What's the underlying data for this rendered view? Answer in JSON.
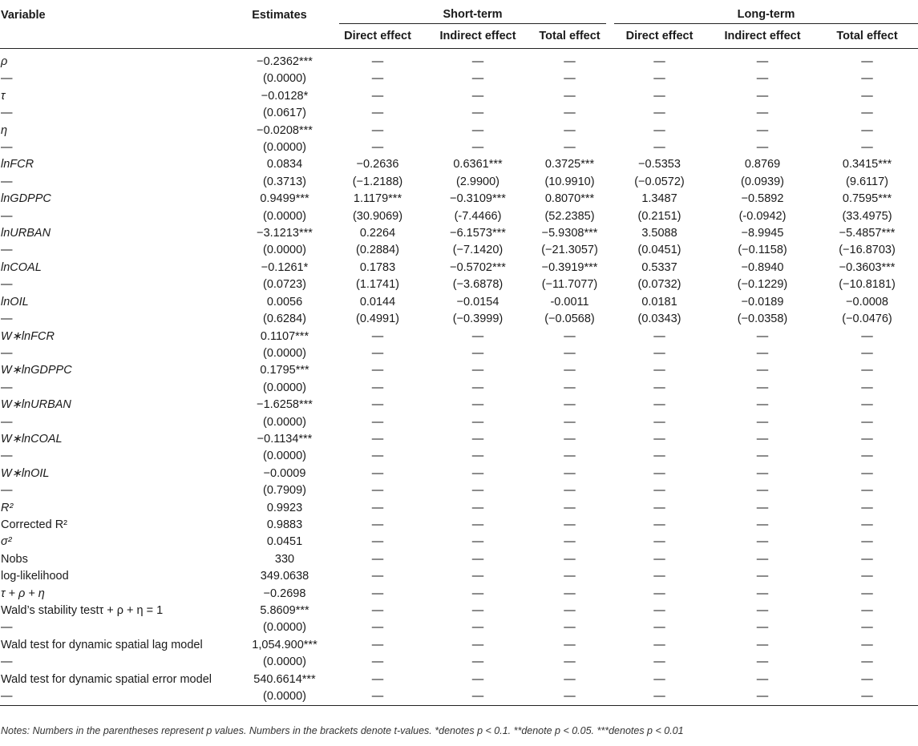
{
  "headers": {
    "variable": "Variable",
    "estimates": "Estimates",
    "short_term": "Short-term",
    "long_term": "Long-term",
    "direct": "Direct effect",
    "indirect": "Indirect effect",
    "total": "Total effect"
  },
  "rows": [
    {
      "name": "ρ",
      "italic": true,
      "cells": [
        "−0.2362***",
        "—",
        "—",
        "—",
        "—",
        "—",
        "—"
      ]
    },
    {
      "name": "—",
      "italic": false,
      "cells": [
        "(0.0000)",
        "—",
        "—",
        "—",
        "—",
        "—",
        "—"
      ]
    },
    {
      "name": "τ",
      "italic": true,
      "cells": [
        "−0.0128*",
        "—",
        "—",
        "—",
        "—",
        "—",
        "—"
      ]
    },
    {
      "name": "—",
      "italic": false,
      "cells": [
        "(0.0617)",
        "—",
        "—",
        "—",
        "—",
        "—",
        "—"
      ]
    },
    {
      "name": "η",
      "italic": true,
      "cells": [
        "−0.0208***",
        "—",
        "—",
        "—",
        "—",
        "—",
        "—"
      ]
    },
    {
      "name": "—",
      "italic": false,
      "cells": [
        "(0.0000)",
        "—",
        "—",
        "—",
        "—",
        "—",
        "—"
      ]
    },
    {
      "name": "lnFCR",
      "italic": true,
      "cells": [
        "0.0834",
        "−0.2636",
        "0.6361***",
        "0.3725***",
        "−0.5353",
        "0.8769",
        "0.3415***"
      ]
    },
    {
      "name": "—",
      "italic": false,
      "cells": [
        "(0.3713)",
        "(−1.2188)",
        "(2.9900)",
        "(10.9910)",
        "(−0.0572)",
        "(0.0939)",
        "(9.6117)"
      ]
    },
    {
      "name": "lnGDPPC",
      "italic": true,
      "cells": [
        "0.9499***",
        "1.1179***",
        "−0.3109***",
        "0.8070***",
        "1.3487",
        "−0.5892",
        "0.7595***"
      ]
    },
    {
      "name": "—",
      "italic": false,
      "cells": [
        "(0.0000)",
        "(30.9069)",
        "(-7.4466)",
        "(52.2385)",
        "(0.2151)",
        "(-0.0942)",
        "(33.4975)"
      ]
    },
    {
      "name": "lnURBAN",
      "italic": true,
      "cells": [
        "−3.1213***",
        "0.2264",
        "−6.1573***",
        "−5.9308***",
        "3.5088",
        "−8.9945",
        "−5.4857***"
      ]
    },
    {
      "name": "—",
      "italic": false,
      "cells": [
        "(0.0000)",
        "(0.2884)",
        "(−7.1420)",
        "(−21.3057)",
        "(0.0451)",
        "(−0.1158)",
        "(−16.8703)"
      ]
    },
    {
      "name": "lnCOAL",
      "italic": true,
      "cells": [
        "−0.1261*",
        "0.1783",
        "−0.5702***",
        "−0.3919***",
        "0.5337",
        "−0.8940",
        "−0.3603***"
      ]
    },
    {
      "name": "—",
      "italic": false,
      "cells": [
        "(0.0723)",
        "(1.1741)",
        "(−3.6878)",
        "(−11.7077)",
        "(0.0732)",
        "(−0.1229)",
        "(−10.8181)"
      ]
    },
    {
      "name": "lnOIL",
      "italic": true,
      "cells": [
        "0.0056",
        "0.0144",
        "−0.0154",
        "-0.0011",
        "0.0181",
        "−0.0189",
        "−0.0008"
      ]
    },
    {
      "name": "—",
      "italic": false,
      "cells": [
        "(0.6284)",
        "(0.4991)",
        "(−0.3999)",
        "(−0.0568)",
        "(0.0343)",
        "(−0.0358)",
        "(−0.0476)"
      ]
    },
    {
      "name": "W∗lnFCR",
      "italic": true,
      "cells": [
        "0.1107***",
        "—",
        "—",
        "—",
        "—",
        "—",
        "—"
      ]
    },
    {
      "name": "—",
      "italic": false,
      "cells": [
        "(0.0000)",
        "—",
        "—",
        "—",
        "—",
        "—",
        "—"
      ]
    },
    {
      "name": "W∗lnGDPPC",
      "italic": true,
      "cells": [
        "0.1795***",
        "—",
        "—",
        "—",
        "—",
        "—",
        "—"
      ]
    },
    {
      "name": "—",
      "italic": false,
      "cells": [
        "(0.0000)",
        "—",
        "—",
        "—",
        "—",
        "—",
        "—"
      ]
    },
    {
      "name": "W∗lnURBAN",
      "italic": true,
      "cells": [
        "−1.6258***",
        "—",
        "—",
        "—",
        "—",
        "—",
        "—"
      ]
    },
    {
      "name": "—",
      "italic": false,
      "cells": [
        "(0.0000)",
        "—",
        "—",
        "—",
        "—",
        "—",
        "—"
      ]
    },
    {
      "name": "W∗lnCOAL",
      "italic": true,
      "cells": [
        "−0.1134***",
        "—",
        "—",
        "—",
        "—",
        "—",
        "—"
      ]
    },
    {
      "name": "—",
      "italic": false,
      "cells": [
        "(0.0000)",
        "—",
        "—",
        "—",
        "—",
        "—",
        "—"
      ]
    },
    {
      "name": "W∗lnOIL",
      "italic": true,
      "cells": [
        "−0.0009",
        "—",
        "—",
        "—",
        "—",
        "—",
        "—"
      ]
    },
    {
      "name": "—",
      "italic": false,
      "cells": [
        "(0.7909)",
        "—",
        "—",
        "—",
        "—",
        "—",
        "—"
      ]
    },
    {
      "name": "R²",
      "italic": true,
      "cells": [
        "0.9923",
        "—",
        "—",
        "—",
        "—",
        "—",
        "—"
      ]
    },
    {
      "name": "Corrected R²",
      "italic": false,
      "cells": [
        "0.9883",
        "—",
        "—",
        "—",
        "—",
        "—",
        "—"
      ]
    },
    {
      "name": "σ²",
      "italic": true,
      "cells": [
        "0.0451",
        "—",
        "—",
        "—",
        "—",
        "—",
        "—"
      ]
    },
    {
      "name": "Nobs",
      "italic": false,
      "cells": [
        "330",
        "—",
        "—",
        "—",
        "—",
        "—",
        "—"
      ]
    },
    {
      "name": "log-likelihood",
      "italic": false,
      "cells": [
        "349.0638",
        "—",
        "—",
        "—",
        "—",
        "—",
        "—"
      ]
    },
    {
      "name": "τ + ρ + η",
      "italic": true,
      "cells": [
        "−0.2698",
        "—",
        "—",
        "—",
        "—",
        "—",
        "—"
      ]
    },
    {
      "name": "Wald’s stability testτ + ρ + η = 1",
      "italic": false,
      "cells": [
        "5.8609***",
        "—",
        "—",
        "—",
        "—",
        "—",
        "—"
      ]
    },
    {
      "name": "—",
      "italic": false,
      "cells": [
        "(0.0000)",
        "—",
        "—",
        "—",
        "—",
        "—",
        "—"
      ]
    },
    {
      "name": "Wald test for dynamic spatial lag model",
      "italic": false,
      "cells": [
        "1,054.900***",
        "—",
        "—",
        "—",
        "—",
        "—",
        "—"
      ]
    },
    {
      "name": "—",
      "italic": false,
      "cells": [
        "(0.0000)",
        "—",
        "—",
        "—",
        "—",
        "—",
        "—"
      ]
    },
    {
      "name": "Wald test for dynamic spatial error model",
      "italic": false,
      "cells": [
        "540.6614***",
        "—",
        "—",
        "—",
        "—",
        "—",
        "—"
      ]
    },
    {
      "name": "—",
      "italic": false,
      "cells": [
        "(0.0000)",
        "—",
        "—",
        "—",
        "—",
        "—",
        "—"
      ]
    }
  ],
  "notes": "Notes: Numbers in the parentheses represent p values. Numbers in the brackets denote t-values. *denotes p < 0.1. **denote p < 0.05. ***denotes p < 0.01"
}
